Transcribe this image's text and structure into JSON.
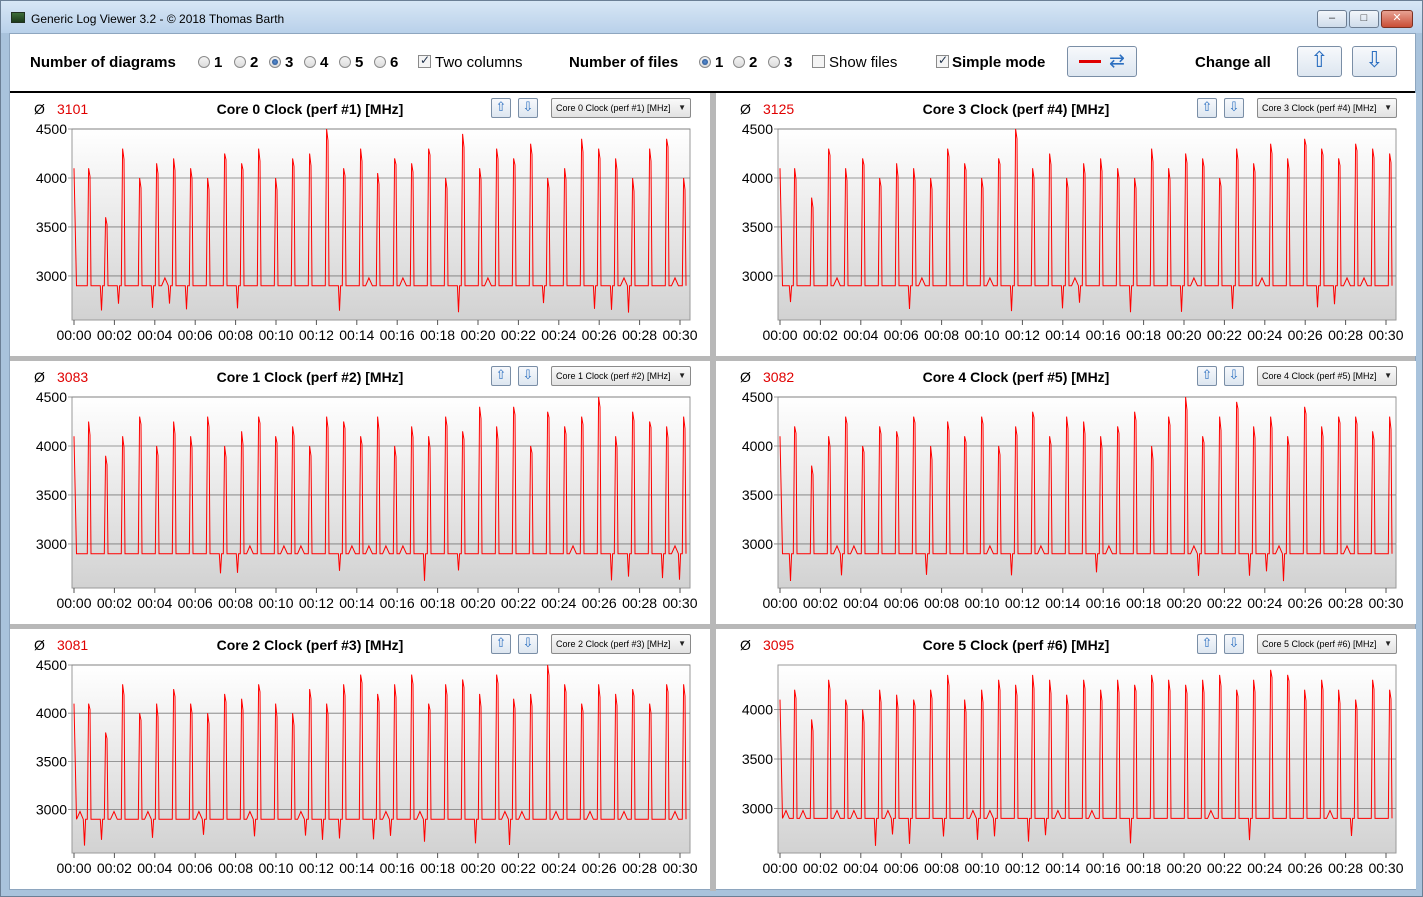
{
  "window": {
    "title": "Generic Log Viewer 3.2 - © 2018 Thomas Barth",
    "minimize_label": "–",
    "maximize_label": "□",
    "close_label": "✕"
  },
  "toolbar": {
    "num_diagrams_label": "Number of diagrams",
    "diagram_options": [
      "1",
      "2",
      "3",
      "4",
      "5",
      "6"
    ],
    "diagram_selected": "3",
    "two_columns_label": "Two columns",
    "two_columns_checked": true,
    "num_files_label": "Number of files",
    "file_options": [
      "1",
      "2",
      "3"
    ],
    "file_selected": "1",
    "show_files_label": "Show files",
    "show_files_checked": false,
    "simple_mode_label": "Simple mode",
    "simple_mode_checked": true,
    "change_all_label": "Change all",
    "up_icon": "arrow-up-icon",
    "down_icon": "arrow-down-icon",
    "swap_icon": "swap-colors-icon"
  },
  "colors": {
    "series": "#ff0000",
    "average": "#e00000",
    "gridline": "#7a7a7a"
  },
  "panels": [
    {
      "avg_symbol": "Ø",
      "avg_value": "3101",
      "title": "Core 0 Clock (perf #1) [MHz]",
      "dropdown": "Core 0 Clock (perf #1) [MHz]",
      "chart_data": {
        "type": "line",
        "title": "Core 0 Clock (perf #1) [MHz]",
        "ylim": [
          2550,
          4500
        ],
        "yticks": [
          "4500",
          "4000",
          "3500",
          "3000"
        ],
        "ytick_values": [
          4500,
          4000,
          3500,
          3000
        ],
        "xticks": [
          "00:00",
          "00:02",
          "00:04",
          "00:06",
          "00:08",
          "00:10",
          "00:12",
          "00:14",
          "00:16",
          "00:18",
          "00:20",
          "00:22",
          "00:24",
          "00:26",
          "00:28",
          "00:30"
        ],
        "peaks": [
          4100,
          3600,
          4300,
          4000,
          4150,
          4200,
          4100,
          4000,
          4250,
          4150,
          4300,
          4000,
          4200,
          4250,
          4500,
          4100,
          4300,
          4050,
          4200,
          4150,
          4300,
          4000,
          4450,
          4100,
          4300,
          4200,
          4350,
          4000,
          4100,
          4400,
          4300,
          4200,
          4000,
          4300,
          4400,
          4000
        ],
        "seed": 11
      }
    },
    {
      "avg_symbol": "Ø",
      "avg_value": "3125",
      "title": "Core 3 Clock (perf #4) [MHz]",
      "dropdown": "Core 3 Clock (perf #4) [MHz]",
      "chart_data": {
        "type": "line",
        "title": "Core 3 Clock (perf #4) [MHz]",
        "ylim": [
          2550,
          4500
        ],
        "yticks": [
          "4500",
          "4000",
          "3500",
          "3000"
        ],
        "ytick_values": [
          4500,
          4000,
          3500,
          3000
        ],
        "xticks": [
          "00:00",
          "00:02",
          "00:04",
          "00:06",
          "00:08",
          "00:10",
          "00:12",
          "00:14",
          "00:16",
          "00:18",
          "00:20",
          "00:22",
          "00:24",
          "00:26",
          "00:28",
          "00:30"
        ],
        "peaks": [
          4100,
          3800,
          4300,
          4100,
          4200,
          4000,
          4150,
          4100,
          4000,
          4300,
          4150,
          4000,
          4200,
          4500,
          4100,
          4250,
          4000,
          4150,
          4200,
          4100,
          4000,
          4300,
          4100,
          4250,
          4200,
          4000,
          4300,
          4150,
          4350,
          4200,
          4400,
          4300,
          4200,
          4350,
          4300,
          4250
        ],
        "seed": 23
      }
    },
    {
      "avg_symbol": "Ø",
      "avg_value": "3083",
      "title": "Core 1 Clock (perf #2) [MHz]",
      "dropdown": "Core 1 Clock (perf #2) [MHz]",
      "chart_data": {
        "type": "line",
        "title": "Core 1 Clock (perf #2) [MHz]",
        "ylim": [
          2550,
          4500
        ],
        "yticks": [
          "4500",
          "4000",
          "3500",
          "3000"
        ],
        "ytick_values": [
          4500,
          4000,
          3500,
          3000
        ],
        "xticks": [
          "00:00",
          "00:02",
          "00:04",
          "00:06",
          "00:08",
          "00:10",
          "00:12",
          "00:14",
          "00:16",
          "00:18",
          "00:20",
          "00:22",
          "00:24",
          "00:26",
          "00:28",
          "00:30"
        ],
        "peaks": [
          4250,
          3900,
          4100,
          4300,
          4000,
          4250,
          4100,
          4300,
          4000,
          4150,
          4300,
          4100,
          4200,
          4000,
          4300,
          4250,
          4100,
          4300,
          4000,
          4200,
          4100,
          4300,
          4150,
          4400,
          4200,
          4400,
          4000,
          4350,
          4200,
          4300,
          4500,
          4100,
          4350,
          4250,
          4200,
          4300
        ],
        "seed": 37
      }
    },
    {
      "avg_symbol": "Ø",
      "avg_value": "3082",
      "title": "Core 4 Clock (perf #5) [MHz]",
      "dropdown": "Core 4 Clock (perf #5) [MHz]",
      "chart_data": {
        "type": "line",
        "title": "Core 4 Clock (perf #5) [MHz]",
        "ylim": [
          2550,
          4500
        ],
        "yticks": [
          "4500",
          "4000",
          "3500",
          "3000"
        ],
        "ytick_values": [
          4500,
          4000,
          3500,
          3000
        ],
        "xticks": [
          "00:00",
          "00:02",
          "00:04",
          "00:06",
          "00:08",
          "00:10",
          "00:12",
          "00:14",
          "00:16",
          "00:18",
          "00:20",
          "00:22",
          "00:24",
          "00:26",
          "00:28",
          "00:30"
        ],
        "peaks": [
          4200,
          3800,
          4100,
          4300,
          4000,
          4200,
          4150,
          4300,
          4000,
          4250,
          4100,
          4300,
          4000,
          4200,
          4350,
          4100,
          4300,
          4250,
          4100,
          4200,
          4350,
          4000,
          4300,
          4500,
          4100,
          4300,
          4450,
          4200,
          4300,
          4100,
          4400,
          4200,
          4300,
          4300,
          4150,
          4300
        ],
        "seed": 53
      }
    },
    {
      "avg_symbol": "Ø",
      "avg_value": "3081",
      "title": "Core 2 Clock (perf #3) [MHz]",
      "dropdown": "Core 2 Clock (perf #3) [MHz]",
      "chart_data": {
        "type": "line",
        "title": "Core 2 Clock (perf #3) [MHz]",
        "ylim": [
          2550,
          4500
        ],
        "yticks": [
          "4500",
          "4000",
          "3500",
          "3000"
        ],
        "ytick_values": [
          4500,
          4000,
          3500,
          3000
        ],
        "xticks": [
          "00:00",
          "00:02",
          "00:04",
          "00:06",
          "00:08",
          "00:10",
          "00:12",
          "00:14",
          "00:16",
          "00:18",
          "00:20",
          "00:22",
          "00:24",
          "00:26",
          "00:28",
          "00:30"
        ],
        "peaks": [
          4100,
          3800,
          4300,
          4000,
          4100,
          4250,
          4100,
          4000,
          4200,
          4150,
          4300,
          4100,
          4000,
          4250,
          4100,
          4300,
          4400,
          4200,
          4300,
          4400,
          4100,
          4300,
          4350,
          4200,
          4400,
          4150,
          4200,
          4500,
          4300,
          4100,
          4300,
          4200,
          4250,
          4100,
          4300,
          4300
        ],
        "seed": 71
      }
    },
    {
      "avg_symbol": "Ø",
      "avg_value": "3095",
      "title": "Core 5 Clock (perf #6) [MHz]",
      "dropdown": "Core 5 Clock (perf #6) [MHz]",
      "chart_data": {
        "type": "line",
        "title": "Core 5 Clock (perf #6) [MHz]",
        "ylim": [
          2550,
          4450
        ],
        "yticks": [
          "4000",
          "3500",
          "3000"
        ],
        "ytick_values": [
          4000,
          3500,
          3000
        ],
        "xticks": [
          "00:00",
          "00:02",
          "00:04",
          "00:06",
          "00:08",
          "00:10",
          "00:12",
          "00:14",
          "00:16",
          "00:18",
          "00:20",
          "00:22",
          "00:24",
          "00:26",
          "00:28",
          "00:30"
        ],
        "peaks": [
          4200,
          3900,
          4300,
          4100,
          4000,
          4200,
          4150,
          4100,
          4200,
          4350,
          4100,
          4200,
          4300,
          4250,
          4350,
          4300,
          4150,
          4300,
          4200,
          4300,
          4250,
          4350,
          4300,
          4250,
          4300,
          4350,
          4200,
          4300,
          4400,
          4350,
          4200,
          4300,
          4200,
          4100,
          4300,
          4200
        ],
        "seed": 89
      }
    }
  ]
}
